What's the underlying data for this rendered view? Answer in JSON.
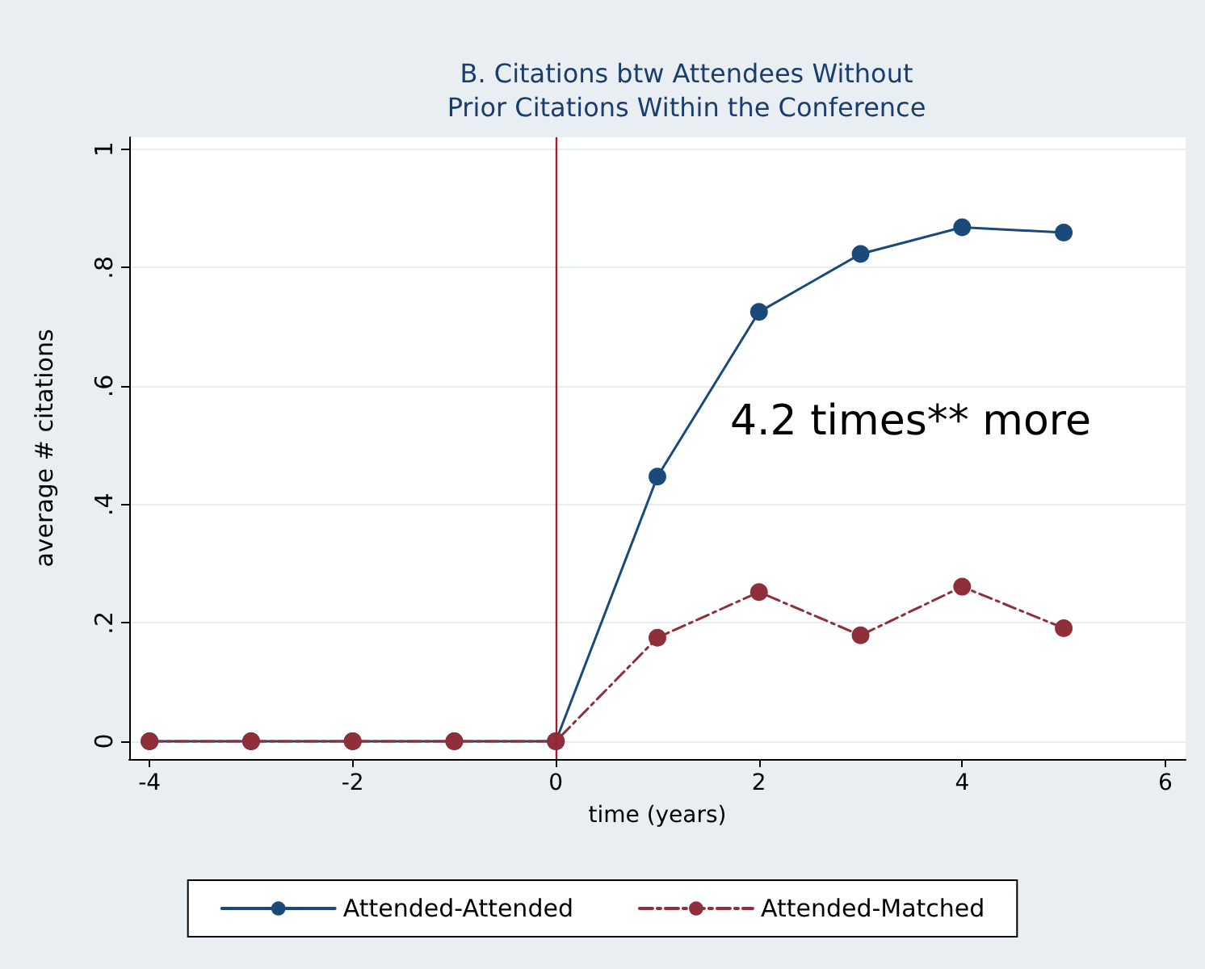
{
  "chart_data": {
    "type": "line",
    "title": "B. Citations btw Attendees Without\nPrior Citations Within the Conference",
    "xlabel": "time (years)",
    "ylabel": "average # citations",
    "x": [
      -4,
      -3,
      -2,
      -1,
      0,
      1,
      2,
      3,
      4,
      5
    ],
    "series": [
      {
        "name": "Attended-Attended",
        "color": "#1a4a7a",
        "line_style": "solid",
        "values": [
          0,
          0,
          0,
          0,
          0,
          0.447,
          0.725,
          0.823,
          0.868,
          0.859
        ]
      },
      {
        "name": "Attended-Matched",
        "color": "#8e2f3a",
        "line_style": "dashed",
        "values": [
          0,
          0,
          0,
          0,
          0,
          0.175,
          0.252,
          0.179,
          0.261,
          0.191
        ]
      }
    ],
    "xlim": [
      -4.2,
      6.2
    ],
    "xticks": [
      -4,
      -2,
      0,
      2,
      4,
      6
    ],
    "ylim": [
      -0.03,
      1.02
    ],
    "yticks": [
      0,
      {
        "value": 0.2,
        "label": ".2"
      },
      {
        "value": 0.4,
        "label": ".4"
      },
      {
        "value": 0.6,
        "label": ".6"
      },
      {
        "value": 0.8,
        "label": ".8"
      },
      1
    ],
    "ref_lines": [
      {
        "axis": "x",
        "value": 0,
        "label": null,
        "color": "#a01e32"
      }
    ],
    "annotations": [
      "4.2 times** more"
    ],
    "grid": "y",
    "legend": "bottom",
    "marker": "circle"
  }
}
